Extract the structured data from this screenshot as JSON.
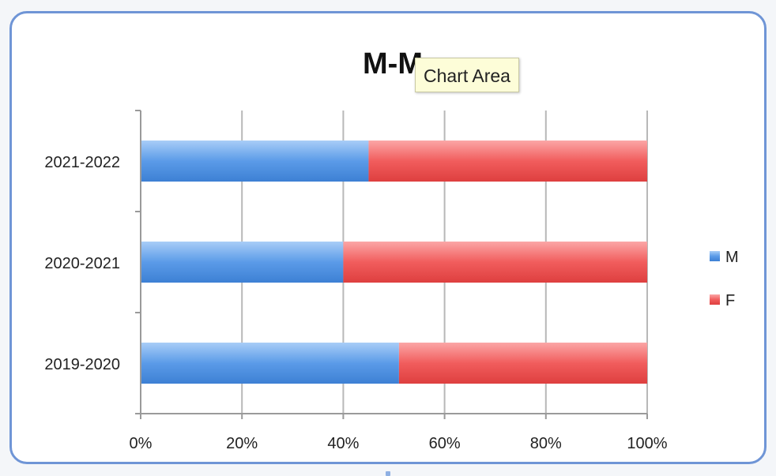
{
  "tooltip": {
    "label": "Chart Area"
  },
  "colors": {
    "M": "#5b9be8",
    "F": "#f15d5d",
    "grid": "#b8b8b8",
    "frame": "#6f95d6"
  },
  "chart_data": {
    "type": "bar",
    "orientation": "horizontal",
    "stacked": "percent",
    "title": "M-M",
    "categories": [
      "2019-2020",
      "2020-2021",
      "2021-2022"
    ],
    "series": [
      {
        "name": "M",
        "values": [
          51,
          40,
          45
        ]
      },
      {
        "name": "F",
        "values": [
          49,
          60,
          55
        ]
      }
    ],
    "xticks": [
      "0%",
      "20%",
      "40%",
      "60%",
      "80%",
      "100%"
    ],
    "xlim": [
      0,
      100
    ],
    "grid": true,
    "legend": "right"
  }
}
